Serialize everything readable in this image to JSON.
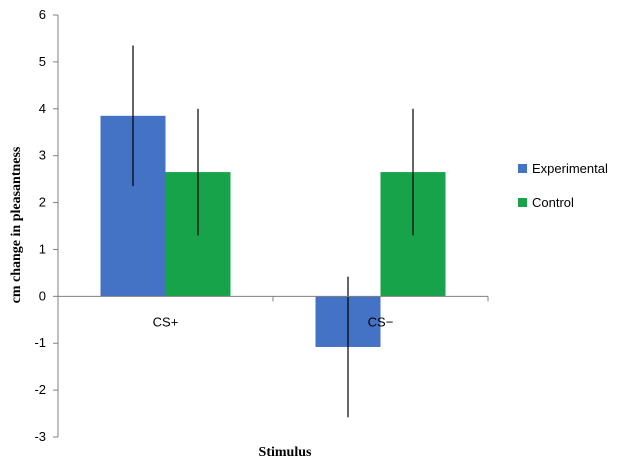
{
  "chart_data": {
    "type": "bar",
    "categories": [
      "CS+",
      "CS−"
    ],
    "series": [
      {
        "name": "Experimental",
        "color": "#4472C4",
        "values": [
          3.85,
          -1.08
        ],
        "error_low": [
          2.35,
          -2.58
        ],
        "error_high": [
          5.35,
          0.42
        ]
      },
      {
        "name": "Control",
        "color": "#17A34A",
        "values": [
          2.65,
          2.65
        ],
        "error_low": [
          1.3,
          1.3
        ],
        "error_high": [
          4.0,
          4.0
        ]
      }
    ],
    "xlabel": "Stimulus",
    "ylabel": "cm change in pleasantness",
    "ylim": [
      -3,
      6
    ],
    "yticks": [
      6,
      5,
      4,
      3,
      2,
      1,
      0,
      -1,
      -2,
      -3
    ],
    "grid": false,
    "legend_position": "right"
  }
}
